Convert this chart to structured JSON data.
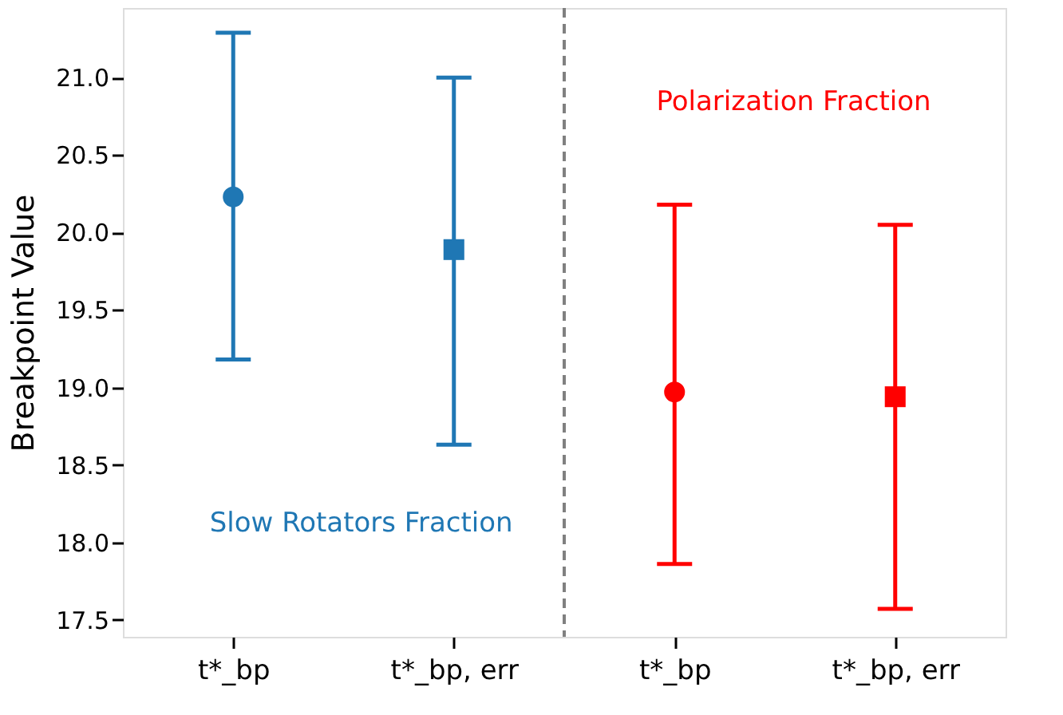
{
  "chart_data": {
    "type": "scatter",
    "ylabel": "Breakpoint Value",
    "categories": [
      "t*_bp",
      "t*_bp, err",
      "t*_bp",
      "t*_bp, err"
    ],
    "ylim": [
      17.39,
      21.45
    ],
    "yticks": [
      17.5,
      {
        "value": 18,
        "label": "18.0"
      },
      18.5,
      {
        "value": 19,
        "label": "19.0"
      },
      19.5,
      {
        "value": 20,
        "label": "20.0"
      },
      20.5,
      {
        "value": 21,
        "label": "21.0"
      }
    ],
    "series": [
      {
        "name": "Slow Rotators Fraction",
        "color": "#1f77b4",
        "values": [
          20.23,
          19.89,
          null,
          null
        ],
        "errors": [
          [
            19.18,
            21.29
          ],
          [
            18.63,
            21.0
          ],
          null,
          null
        ],
        "marker": [
          "circle",
          "square",
          "circle",
          "square"
        ]
      },
      {
        "name": "Polarization Fraction",
        "color": "#ff0000",
        "values": [
          null,
          null,
          18.97,
          18.94
        ],
        "errors": [
          null,
          null,
          [
            17.86,
            20.18
          ],
          [
            17.57,
            20.05
          ]
        ],
        "marker": [
          "circle",
          "square",
          "circle",
          "square"
        ]
      }
    ],
    "ref_lines": [
      {
        "axis": "x",
        "color": "#808080",
        "line_style": "dashed"
      }
    ],
    "grid": false,
    "legend": false
  }
}
